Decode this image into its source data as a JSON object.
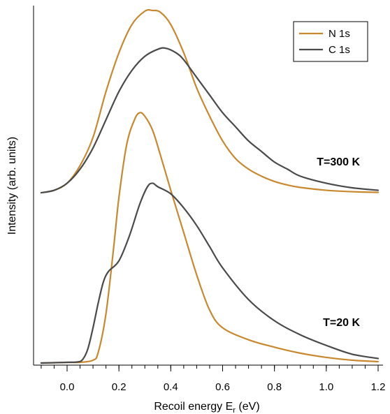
{
  "chart_data": {
    "type": "line",
    "xlabel": "Recoil energy E",
    "xlabel_sub": "r",
    "xlabel_unit": " (eV)",
    "ylabel": "Intensity (arb. units)",
    "xlim": [
      -0.1,
      1.2
    ],
    "ylim": [
      0,
      1
    ],
    "y_ticks_labeled": false,
    "x_ticks": [
      0.0,
      0.2,
      0.4,
      0.6,
      0.8,
      1.0,
      1.2
    ],
    "x_tick_labels": [
      "0.0",
      "0.2",
      "0.4",
      "0.6",
      "0.8",
      "1.0",
      "1.2"
    ],
    "x_minor_step": 0.05,
    "grid": false,
    "legend": {
      "placement": "top-right",
      "entries": [
        "N 1s",
        "C 1s"
      ]
    },
    "colors": {
      "N 1s": "#c8892e",
      "C 1s": "#4a4a4a"
    },
    "annotations": [
      {
        "text": "T=300 K",
        "x": 1.13,
        "y": 0.56
      },
      {
        "text": "T=20 K",
        "x": 1.13,
        "y": 0.105
      }
    ],
    "panels": [
      {
        "label": "T=300 K",
        "series": [
          {
            "name": "N 1s",
            "x": [
              -0.1,
              -0.05,
              0.0,
              0.05,
              0.1,
              0.15,
              0.2,
              0.25,
              0.3,
              0.33,
              0.36,
              0.4,
              0.45,
              0.5,
              0.55,
              0.6,
              0.65,
              0.7,
              0.75,
              0.8,
              0.85,
              0.9,
              1.0,
              1.1,
              1.2
            ],
            "y": [
              0.483,
              0.49,
              0.51,
              0.56,
              0.64,
              0.77,
              0.88,
              0.96,
              0.998,
              1.0,
              0.995,
              0.96,
              0.88,
              0.78,
              0.7,
              0.63,
              0.58,
              0.55,
              0.53,
              0.515,
              0.505,
              0.498,
              0.49,
              0.486,
              0.484
            ]
          },
          {
            "name": "C 1s",
            "x": [
              -0.1,
              -0.05,
              0.0,
              0.05,
              0.1,
              0.15,
              0.2,
              0.25,
              0.3,
              0.35,
              0.38,
              0.42,
              0.45,
              0.5,
              0.55,
              0.6,
              0.65,
              0.7,
              0.75,
              0.8,
              0.85,
              0.9,
              1.0,
              1.1,
              1.2
            ],
            "y": [
              0.483,
              0.49,
              0.51,
              0.55,
              0.61,
              0.69,
              0.77,
              0.83,
              0.87,
              0.89,
              0.893,
              0.88,
              0.86,
              0.81,
              0.76,
              0.71,
              0.67,
              0.63,
              0.6,
              0.57,
              0.55,
              0.53,
              0.51,
              0.497,
              0.49
            ]
          }
        ]
      },
      {
        "label": "T=20 K",
        "series": [
          {
            "name": "N 1s",
            "x": [
              -0.1,
              0.0,
              0.05,
              0.1,
              0.12,
              0.15,
              0.18,
              0.2,
              0.23,
              0.26,
              0.28,
              0.3,
              0.33,
              0.36,
              0.4,
              0.45,
              0.5,
              0.55,
              0.6,
              0.7,
              0.8,
              0.9,
              1.0,
              1.1,
              1.2
            ],
            "y": [
              0.0,
              0.002,
              0.002,
              0.008,
              0.03,
              0.14,
              0.33,
              0.47,
              0.62,
              0.69,
              0.71,
              0.7,
              0.66,
              0.59,
              0.49,
              0.37,
              0.25,
              0.15,
              0.1,
              0.066,
              0.045,
              0.028,
              0.016,
              0.008,
              0.004
            ]
          },
          {
            "name": "C 1s",
            "x": [
              -0.1,
              0.0,
              0.04,
              0.06,
              0.08,
              0.1,
              0.12,
              0.14,
              0.16,
              0.2,
              0.24,
              0.28,
              0.31,
              0.33,
              0.35,
              0.4,
              0.45,
              0.5,
              0.55,
              0.6,
              0.7,
              0.8,
              0.9,
              1.0,
              1.1,
              1.2
            ],
            "y": [
              0.0,
              0.002,
              0.003,
              0.01,
              0.04,
              0.1,
              0.17,
              0.23,
              0.26,
              0.29,
              0.36,
              0.45,
              0.5,
              0.51,
              0.5,
              0.48,
              0.44,
              0.39,
              0.33,
              0.27,
              0.18,
              0.12,
              0.08,
              0.05,
              0.025,
              0.013
            ]
          }
        ]
      }
    ]
  }
}
